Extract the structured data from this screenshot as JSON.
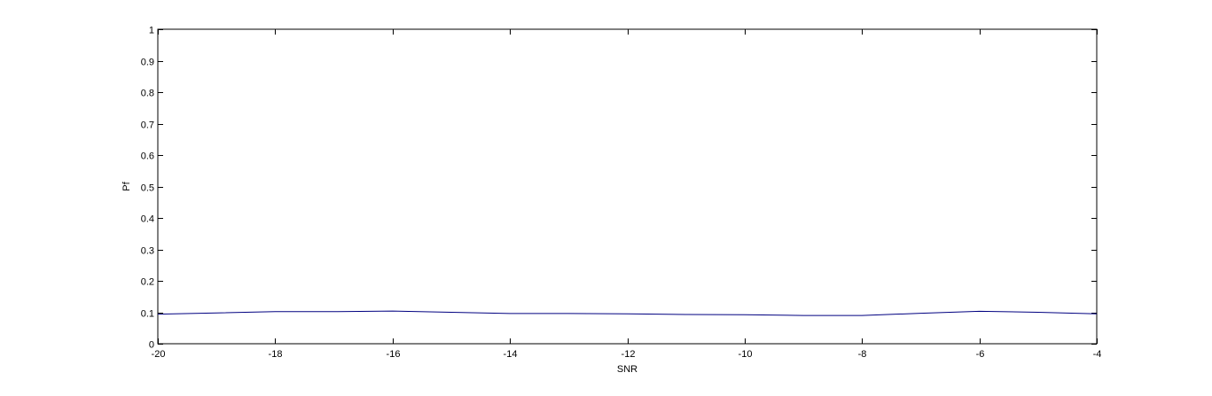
{
  "chart_data": {
    "type": "line",
    "title": "",
    "xlabel": "SNR",
    "ylabel": "Pf",
    "xlim": [
      -20,
      -4
    ],
    "ylim": [
      0,
      1
    ],
    "xticks": [
      -20,
      -18,
      -16,
      -14,
      -12,
      -10,
      -8,
      -6,
      -4
    ],
    "xtick_labels": [
      "-20",
      "-18",
      "-16",
      "-14",
      "-12",
      "-10",
      "-8",
      "-6",
      "-4"
    ],
    "yticks": [
      0,
      0.1,
      0.2,
      0.3,
      0.4,
      0.5,
      0.6,
      0.7,
      0.8,
      0.9,
      1
    ],
    "ytick_labels": [
      "0",
      "0.1",
      "0.2",
      "0.3",
      "0.4",
      "0.5",
      "0.6",
      "0.7",
      "0.8",
      "0.9",
      "1"
    ],
    "grid": false,
    "series": [
      {
        "color": "#000080",
        "x": [
          -20,
          -19,
          -18,
          -17,
          -16,
          -15,
          -14,
          -13,
          -12,
          -11,
          -10,
          -9,
          -8,
          -7,
          -6,
          -5,
          -4
        ],
        "y": [
          0.094,
          0.098,
          0.102,
          0.102,
          0.104,
          0.1,
          0.096,
          0.096,
          0.095,
          0.093,
          0.092,
          0.09,
          0.09,
          0.097,
          0.103,
          0.1,
          0.095
        ]
      }
    ]
  }
}
